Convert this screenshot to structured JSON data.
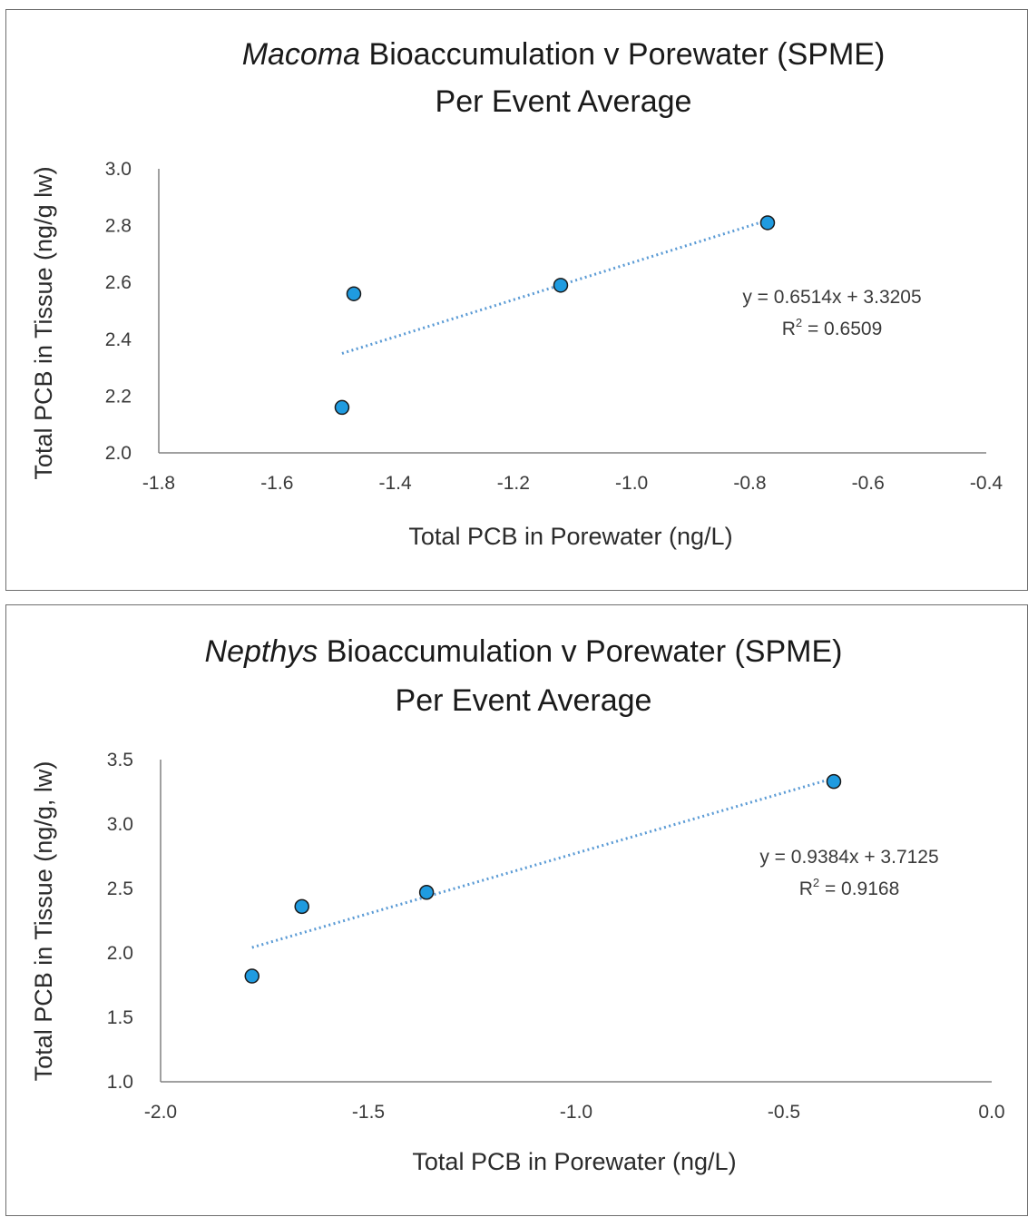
{
  "chart_data": [
    {
      "type": "scatter",
      "title_italic": "Macoma",
      "title_rest": " Bioaccumulation v Porewater (SPME)",
      "subtitle": "Per Event Average",
      "xlabel": "Total PCB in Porewater (ng/L)",
      "ylabel": "Total PCB in Tissue (ng/g lw)",
      "xlim": [
        -1.8,
        -0.4
      ],
      "ylim": [
        2.0,
        3.0
      ],
      "xticks": [
        -1.8,
        -1.6,
        -1.4,
        -1.2,
        -1.0,
        -0.8,
        -0.6,
        -0.4
      ],
      "xtick_labels": [
        "-1.8",
        "-1.6",
        "-1.4",
        "-1.2",
        "-1.0",
        "-0.8",
        "-0.6",
        "-0.4"
      ],
      "yticks": [
        2.0,
        2.2,
        2.4,
        2.6,
        2.8,
        3.0
      ],
      "ytick_labels": [
        "2.0",
        "2.2",
        "2.4",
        "2.6",
        "2.8",
        "3.0"
      ],
      "points": [
        {
          "x": -1.49,
          "y": 2.16
        },
        {
          "x": -1.47,
          "y": 2.56
        },
        {
          "x": -1.12,
          "y": 2.59
        },
        {
          "x": -0.77,
          "y": 2.81
        }
      ],
      "trendline": {
        "slope": 0.6514,
        "intercept": 3.3205,
        "x_range": [
          -1.49,
          -0.77
        ],
        "style": "dotted"
      },
      "equation": "y = 0.6514x + 3.3205",
      "r2_prefix": "R",
      "r2_sup": "2",
      "r2_value": " = 0.6509",
      "marker_color": "#1f9be0",
      "marker_edge": "#1a1a1a",
      "trend_color": "#5b9bd5",
      "grid": false,
      "legend": "none"
    },
    {
      "type": "scatter",
      "title_italic": "Nepthys",
      "title_rest": " Bioaccumulation v Porewater (SPME)",
      "subtitle": "Per Event Average",
      "xlabel": "Total PCB in Porewater (ng/L)",
      "ylabel": "Total PCB in Tissue (ng/g, lw)",
      "xlim": [
        -2.0,
        0.0
      ],
      "ylim": [
        1.0,
        3.5
      ],
      "xticks": [
        -2.0,
        -1.5,
        -1.0,
        -0.5,
        0.0
      ],
      "xtick_labels": [
        "-2.0",
        "-1.5",
        "-1.0",
        "-0.5",
        "0.0"
      ],
      "yticks": [
        1.0,
        1.5,
        2.0,
        2.5,
        3.0,
        3.5
      ],
      "ytick_labels": [
        "1.0",
        "1.5",
        "2.0",
        "2.5",
        "3.0",
        "3.5"
      ],
      "points": [
        {
          "x": -1.78,
          "y": 1.82
        },
        {
          "x": -1.66,
          "y": 2.36
        },
        {
          "x": -1.36,
          "y": 2.47
        },
        {
          "x": -0.38,
          "y": 3.33
        }
      ],
      "trendline": {
        "slope": 0.9384,
        "intercept": 3.7125,
        "x_range": [
          -1.78,
          -0.38
        ],
        "style": "dotted"
      },
      "equation": "y = 0.9384x + 3.7125",
      "r2_prefix": "R",
      "r2_sup": "2",
      "r2_value": " = 0.9168",
      "marker_color": "#1f9be0",
      "marker_edge": "#1a1a1a",
      "trend_color": "#5b9bd5",
      "grid": false,
      "legend": "none"
    }
  ]
}
